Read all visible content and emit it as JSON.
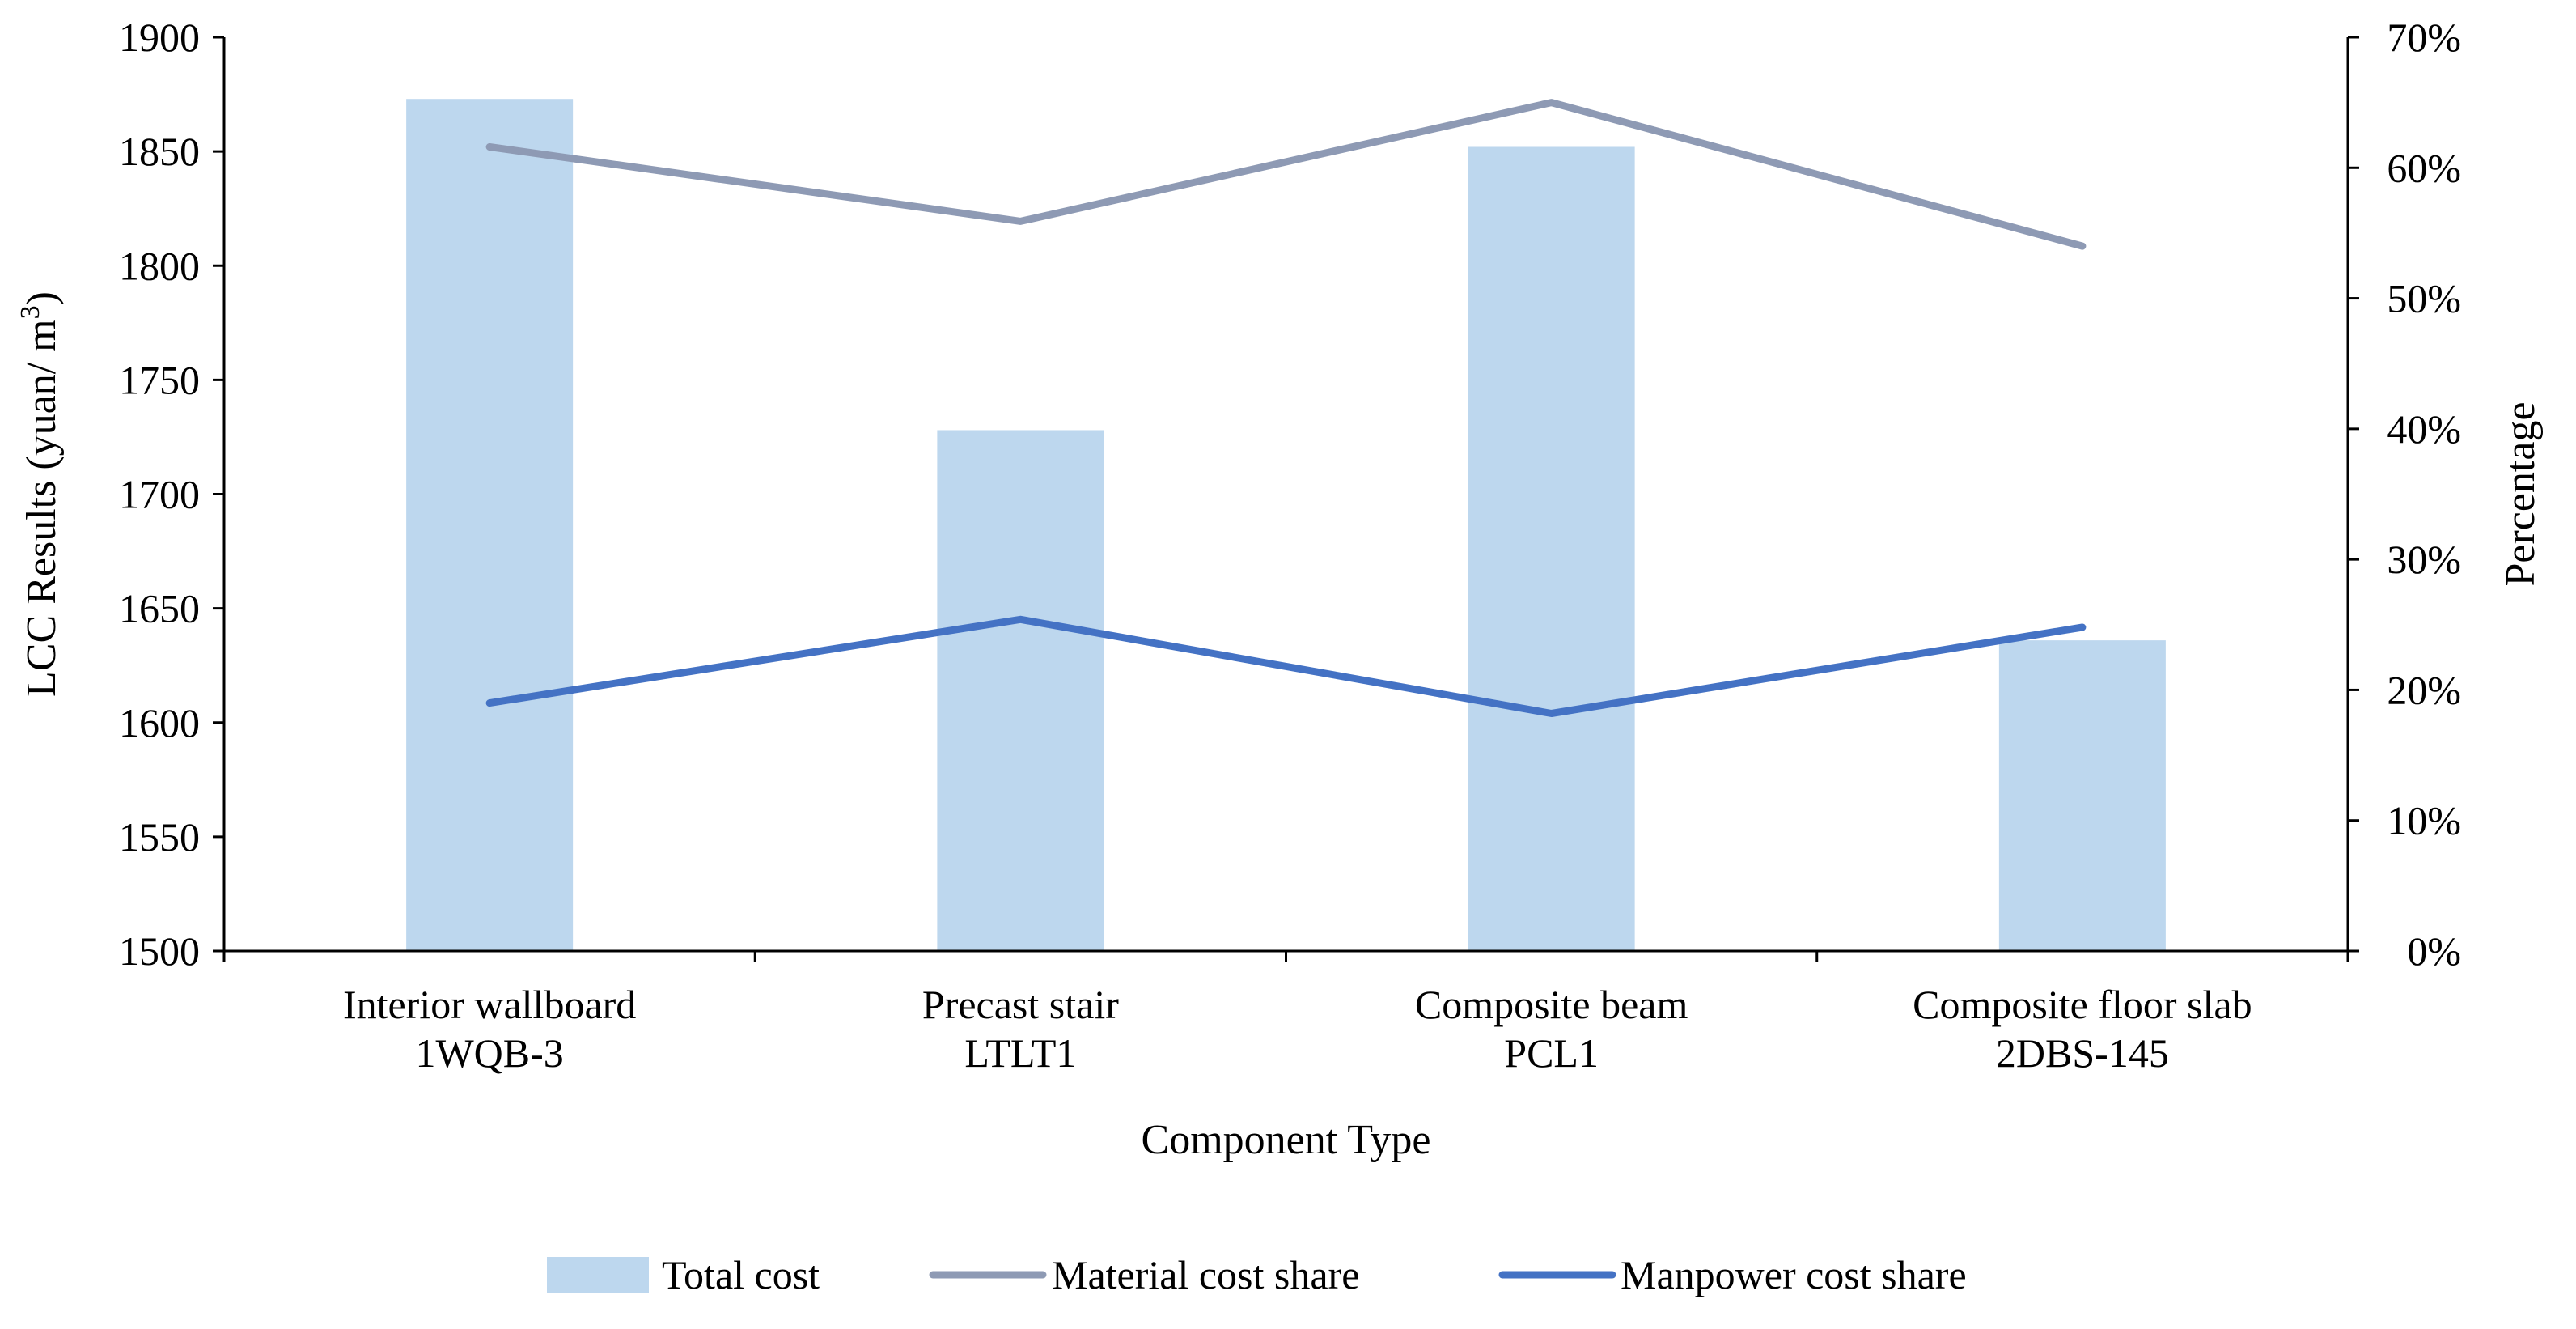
{
  "chart_data": {
    "type": "bar",
    "title": "",
    "xlabel": "Component Type",
    "ylabel_main": "LCC Results (yuan/ m",
    "ylabel_sup": "3",
    "ylabel_close": ")",
    "y2label": "Percentage",
    "ylim": [
      1500,
      1900
    ],
    "yticks": [
      1500,
      1550,
      1600,
      1650,
      1700,
      1750,
      1800,
      1850,
      1900
    ],
    "y2lim": [
      0,
      70
    ],
    "y2ticks": [
      "0%",
      "10%",
      "20%",
      "30%",
      "40%",
      "50%",
      "60%",
      "70%"
    ],
    "categories": [
      [
        "Interior wallboard",
        "1WQB-3"
      ],
      [
        "Precast stair",
        "LTLT1"
      ],
      [
        "Composite beam",
        "PCL1"
      ],
      [
        "Composite floor slab",
        "2DBS-145"
      ]
    ],
    "series": [
      {
        "name": "Total cost",
        "kind": "bar",
        "axis": "left",
        "color": "#BDD7EE",
        "values": [
          1873,
          1728,
          1852,
          1636
        ]
      },
      {
        "name": "Material cost share",
        "kind": "line",
        "axis": "right",
        "color": "#8E9AB4",
        "values": [
          61.6,
          55.9,
          65.0,
          54.0
        ]
      },
      {
        "name": "Manpower cost share",
        "kind": "line",
        "axis": "right",
        "color": "#4472C4",
        "values": [
          19.0,
          25.4,
          18.2,
          24.8
        ]
      }
    ],
    "legend_position": "bottom",
    "grid": false
  }
}
